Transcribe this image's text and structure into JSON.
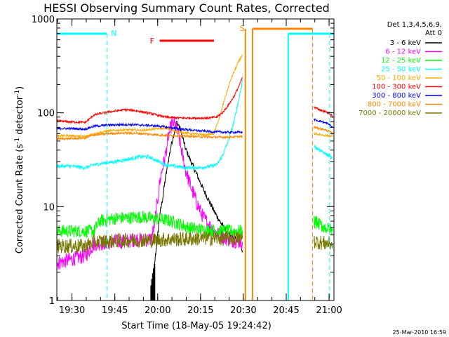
{
  "chart_data": {
    "type": "line",
    "title": "HESSI Observing Summary Count Rates, Corrected",
    "xlabel": "Start Time (18-May-05 19:24:42)",
    "ylabel_main": "Corrected Count Rate (s",
    "ylabel_sup1": "-1",
    "ylabel_mid": " detector",
    "ylabel_sup2": "-1",
    "ylabel_end": ")",
    "x_unit": "minutes since 19:24:42",
    "xlim": [
      0,
      97
    ],
    "ylim": [
      1,
      1000
    ],
    "y_scale": "log",
    "x_ticks": [
      {
        "x": 5.3,
        "label": "19:30"
      },
      {
        "x": 20.3,
        "label": "19:45"
      },
      {
        "x": 35.3,
        "label": "20:00"
      },
      {
        "x": 50.3,
        "label": "20:15"
      },
      {
        "x": 65.3,
        "label": "20:30"
      },
      {
        "x": 80.3,
        "label": "20:45"
      },
      {
        "x": 95.3,
        "label": "21:00"
      }
    ],
    "y_ticks": [
      {
        "y": 1,
        "label": "1"
      },
      {
        "y": 10,
        "label": "10"
      },
      {
        "y": 100,
        "label": "100"
      },
      {
        "y": 1000,
        "label": "1000"
      }
    ],
    "legend_header": [
      "Det 1,3,4,5,6,9,",
      "Att 0"
    ],
    "series": [
      {
        "name": "3 - 6 keV",
        "color": "#000000",
        "points": [
          [
            33,
            1.0
          ],
          [
            33.5,
            1.5
          ],
          [
            34,
            2
          ],
          [
            34.5,
            3
          ],
          [
            35,
            4
          ],
          [
            36,
            8
          ],
          [
            37,
            12
          ],
          [
            38,
            20
          ],
          [
            39,
            30
          ],
          [
            40,
            45
          ],
          [
            41,
            60
          ],
          [
            42,
            80
          ],
          [
            43,
            70
          ],
          [
            44,
            55
          ],
          [
            45,
            42
          ],
          [
            47,
            30
          ],
          [
            49,
            22
          ],
          [
            51,
            16
          ],
          [
            53,
            12
          ],
          [
            55,
            9
          ],
          [
            57,
            7
          ],
          [
            58.5,
            6
          ],
          [
            60,
            5
          ],
          [
            61,
            4.8
          ],
          [
            62,
            4.6
          ],
          [
            63,
            4.5
          ],
          [
            64,
            4.3
          ],
          [
            65,
            3.4
          ]
        ]
      },
      {
        "name": "6 - 12 keV",
        "color": "#ff00ff",
        "points": [
          [
            0,
            2.5
          ],
          [
            10,
            3
          ],
          [
            13,
            4
          ],
          [
            20,
            4.2
          ],
          [
            25,
            4.3
          ],
          [
            28,
            4.5
          ],
          [
            30,
            4.4
          ],
          [
            33,
            4.5
          ],
          [
            34,
            6
          ],
          [
            35,
            10
          ],
          [
            36,
            18
          ],
          [
            37,
            26
          ],
          [
            38,
            35
          ],
          [
            39,
            55
          ],
          [
            40,
            72
          ],
          [
            41,
            78
          ],
          [
            42,
            68
          ],
          [
            43,
            50
          ],
          [
            44,
            35
          ],
          [
            45,
            25
          ],
          [
            47,
            16
          ],
          [
            49,
            11
          ],
          [
            51,
            8
          ],
          [
            53,
            6.5
          ],
          [
            55,
            5.5
          ],
          [
            57,
            5
          ],
          [
            59,
            4.6
          ],
          [
            61,
            4.4
          ],
          [
            63,
            4.3
          ],
          [
            65,
            4.2
          ]
        ]
      },
      {
        "name": "12 - 25 keV",
        "color": "#00ff00",
        "points": [
          [
            0,
            5.5
          ],
          [
            13,
            5.5
          ],
          [
            15,
            7
          ],
          [
            20,
            7.5
          ],
          [
            25,
            7.6
          ],
          [
            30,
            7.8
          ],
          [
            33,
            7.5
          ],
          [
            36,
            7.4
          ],
          [
            40,
            7.0
          ],
          [
            43,
            6.5
          ],
          [
            46,
            6.0
          ],
          [
            50,
            5.7
          ],
          [
            55,
            5.6
          ],
          [
            60,
            5.5
          ],
          [
            65,
            5.5
          ]
        ]
      },
      {
        "name": "25 - 50 keV",
        "color": "#00ffff",
        "points": [
          [
            0,
            27
          ],
          [
            5,
            27
          ],
          [
            10,
            26
          ],
          [
            13,
            28
          ],
          [
            16,
            29
          ],
          [
            20,
            30
          ],
          [
            25,
            32
          ],
          [
            29,
            34
          ],
          [
            32,
            34
          ],
          [
            35,
            31
          ],
          [
            38,
            28
          ],
          [
            41,
            27
          ],
          [
            45,
            26
          ],
          [
            50,
            26
          ],
          [
            54,
            27
          ],
          [
            56,
            28
          ],
          [
            58,
            35
          ],
          [
            60,
            50
          ],
          [
            62,
            80
          ],
          [
            63.5,
            130
          ],
          [
            65,
            220
          ]
        ]
      },
      {
        "name": "50 - 100 keV",
        "color": "#ffaa00",
        "points": [
          [
            0,
            57
          ],
          [
            5,
            57
          ],
          [
            10,
            56
          ],
          [
            13,
            60
          ],
          [
            18,
            64
          ],
          [
            24,
            66
          ],
          [
            30,
            65
          ],
          [
            36,
            68
          ],
          [
            39,
            68
          ],
          [
            42,
            63
          ],
          [
            47,
            60
          ],
          [
            52,
            58
          ],
          [
            55,
            60
          ],
          [
            57,
            90
          ],
          [
            59,
            150
          ],
          [
            61,
            230
          ],
          [
            63,
            320
          ],
          [
            65,
            420
          ]
        ]
      },
      {
        "name": "100 - 300 keV",
        "color": "#ff0000",
        "points": [
          [
            0,
            82
          ],
          [
            5,
            80
          ],
          [
            10,
            79
          ],
          [
            13,
            95
          ],
          [
            18,
            102
          ],
          [
            24,
            108
          ],
          [
            28,
            105
          ],
          [
            33,
            98
          ],
          [
            38,
            90
          ],
          [
            43,
            88
          ],
          [
            48,
            88
          ],
          [
            53,
            88
          ],
          [
            56,
            90
          ],
          [
            58,
            100
          ],
          [
            60,
            120
          ],
          [
            62,
            150
          ],
          [
            64,
            200
          ],
          [
            65,
            240
          ]
        ]
      },
      {
        "name": "300 - 800 keV",
        "color": "#0000ff",
        "points": [
          [
            0,
            68
          ],
          [
            5,
            68
          ],
          [
            10,
            67
          ],
          [
            13,
            72
          ],
          [
            18,
            74
          ],
          [
            24,
            75
          ],
          [
            30,
            74
          ],
          [
            36,
            72
          ],
          [
            42,
            68
          ],
          [
            48,
            65
          ],
          [
            54,
            63
          ],
          [
            60,
            62
          ],
          [
            65,
            62
          ]
        ]
      },
      {
        "name": "800 - 7000 keV",
        "color": "#ff8800",
        "points": [
          [
            0,
            53
          ],
          [
            5,
            53
          ],
          [
            10,
            54
          ],
          [
            13,
            58
          ],
          [
            18,
            60
          ],
          [
            24,
            61
          ],
          [
            30,
            60
          ],
          [
            36,
            58
          ],
          [
            42,
            57
          ],
          [
            48,
            56
          ],
          [
            54,
            55
          ],
          [
            60,
            55
          ],
          [
            65,
            56
          ]
        ]
      },
      {
        "name": "7000 - 20000 keV",
        "color": "#777700",
        "points": [
          [
            0,
            3.8
          ],
          [
            10,
            3.8
          ],
          [
            13,
            4.2
          ],
          [
            20,
            4.3
          ],
          [
            25,
            4.4
          ],
          [
            30,
            4.4
          ],
          [
            35,
            4.4
          ],
          [
            40,
            4.5
          ],
          [
            45,
            4.5
          ],
          [
            50,
            4.6
          ],
          [
            55,
            4.6
          ],
          [
            60,
            4.6
          ],
          [
            65,
            4.6
          ]
        ]
      }
    ],
    "series_late": [
      {
        "name": "100 - 300 keV",
        "color": "#ff0000",
        "points": [
          [
            90,
            115
          ],
          [
            93,
            105
          ],
          [
            95,
            100
          ],
          [
            96.5,
            92
          ]
        ]
      },
      {
        "name": "300 - 800 keV",
        "color": "#0000ff",
        "points": [
          [
            90,
            85
          ],
          [
            93,
            80
          ],
          [
            95,
            76
          ],
          [
            96.5,
            70
          ]
        ]
      },
      {
        "name": "800 - 7000 keV",
        "color": "#ff8800",
        "points": [
          [
            90,
            70
          ],
          [
            93,
            67
          ],
          [
            95,
            64
          ],
          [
            96.5,
            60
          ]
        ]
      },
      {
        "name": "50 - 100 keV",
        "color": "#ffaa00",
        "points": [
          [
            90,
            60
          ],
          [
            93,
            58
          ],
          [
            95,
            57
          ],
          [
            96.5,
            56
          ]
        ]
      },
      {
        "name": "25 - 50 keV",
        "color": "#00ffff",
        "points": [
          [
            90,
            44
          ],
          [
            93,
            38
          ],
          [
            95,
            35
          ],
          [
            96.5,
            33
          ]
        ]
      },
      {
        "name": "12 - 25 keV",
        "color": "#00ff00",
        "points": [
          [
            90,
            7
          ],
          [
            93,
            6.2
          ],
          [
            96.5,
            5.5
          ]
        ]
      },
      {
        "name": "7000 - 20000 keV",
        "color": "#777700",
        "points": [
          [
            90,
            4.3
          ],
          [
            93,
            4.1
          ],
          [
            96.5,
            4.0
          ]
        ]
      }
    ],
    "black_spike_x": [
      33,
      33.3,
      33.6,
      33.9,
      34.2
    ],
    "annotations": {
      "N_label": "N",
      "F_label": "F",
      "S_label": "S",
      "night_segments": [
        [
          0,
          17.5
        ],
        [
          81,
          97
        ]
      ],
      "night_dashed_x": [
        17.5,
        95.5
      ],
      "night_solid_x": [
        81
      ],
      "flare_segment": [
        36,
        55
      ],
      "saa_segment": [
        68.5,
        89.5
      ],
      "saa_solid_x": [
        66,
        68.5
      ],
      "saa_dashed_x": [
        89.5
      ]
    },
    "footer_timestamp": "25-Mar-2010 16:59"
  }
}
